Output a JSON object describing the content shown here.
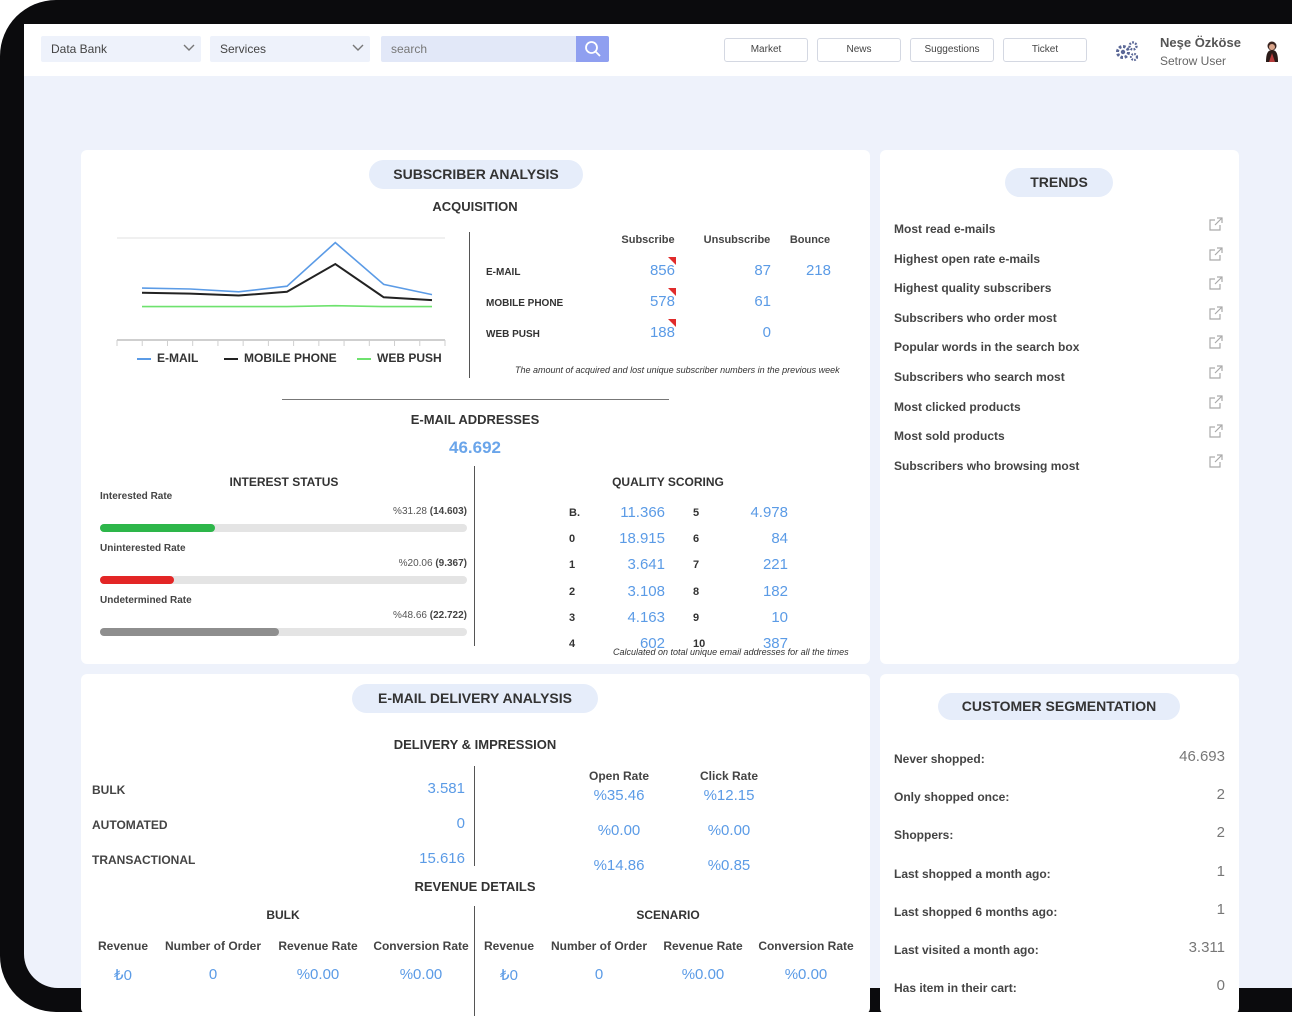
{
  "topbar": {
    "data_bank": "Data Bank",
    "services": "Services",
    "search_placeholder": "search",
    "nav": [
      "Market",
      "News",
      "Suggestions",
      "Ticket"
    ],
    "user_name": "Neşe Özköse",
    "user_role": "Setrow User"
  },
  "subscriber": {
    "title": "SUBSCRIBER ANALYSIS",
    "acquisition": "ACQUISITION",
    "legend": [
      "E-MAIL",
      "MOBILE PHONE",
      "WEB PUSH"
    ],
    "colors": [
      "#5b9be6",
      "#222222",
      "#6ee26e"
    ],
    "table": {
      "headers": [
        "Subscribe",
        "Unsubscribe",
        "Bounce"
      ],
      "rows": [
        {
          "label": "E-MAIL",
          "subscribe": "856",
          "unsubscribe": "87",
          "bounce": "218"
        },
        {
          "label": "MOBILE PHONE",
          "subscribe": "578",
          "unsubscribe": "61",
          "bounce": ""
        },
        {
          "label": "WEB PUSH",
          "subscribe": "188",
          "unsubscribe": "0",
          "bounce": ""
        }
      ],
      "note": "The amount of acquired and lost unique subscriber numbers in the previous week"
    },
    "email_addresses_title": "E-MAIL ADDRESSES",
    "email_addresses_value": "46.692",
    "interest": {
      "title": "INTEREST STATUS",
      "rows": [
        {
          "label": "Interested Rate",
          "pct": "%31.28",
          "count": "(14.603)",
          "fill": 0.3128,
          "color": "#2db64a"
        },
        {
          "label": "Uninterested Rate",
          "pct": "%20.06",
          "count": "(9.367)",
          "fill": 0.2006,
          "color": "#e32626"
        },
        {
          "label": "Undetermined Rate",
          "pct": "%48.66",
          "count": "(22.722)",
          "fill": 0.4866,
          "color": "#8e8e8e"
        }
      ]
    },
    "quality": {
      "title": "QUALITY SCORING",
      "left": [
        {
          "k": "B.",
          "v": "11.366"
        },
        {
          "k": "0",
          "v": "18.915"
        },
        {
          "k": "1",
          "v": "3.641"
        },
        {
          "k": "2",
          "v": "3.108"
        },
        {
          "k": "3",
          "v": "4.163"
        },
        {
          "k": "4",
          "v": "602"
        }
      ],
      "right": [
        {
          "k": "5",
          "v": "4.978"
        },
        {
          "k": "6",
          "v": "84"
        },
        {
          "k": "7",
          "v": "221"
        },
        {
          "k": "8",
          "v": "182"
        },
        {
          "k": "9",
          "v": "10"
        },
        {
          "k": "10",
          "v": "387"
        }
      ],
      "note": "Calculated on total unique email addresses for all the times"
    }
  },
  "chart_data": {
    "type": "line",
    "x": [
      1,
      2,
      3,
      4,
      5,
      6,
      7
    ],
    "series": [
      {
        "name": "E-MAIL",
        "values": [
          56,
          55,
          52,
          58,
          105,
          60,
          49
        ]
      },
      {
        "name": "MOBILE PHONE",
        "values": [
          51,
          50,
          48,
          52,
          82,
          46,
          43
        ]
      },
      {
        "name": "WEB PUSH",
        "values": [
          36,
          36,
          36,
          36,
          37,
          36,
          36
        ]
      }
    ],
    "ylim": [
      0,
      110
    ],
    "legend_position": "bottom"
  },
  "trends": {
    "title": "TRENDS",
    "items": [
      "Most read e-mails",
      "Highest open rate e-mails",
      "Highest quality subscribers",
      "Subscribers who order most",
      "Popular words in the search box",
      "Subscribers who search most",
      "Most clicked products",
      "Most sold products",
      "Subscribers who browsing most"
    ]
  },
  "delivery": {
    "title": "E-MAIL DELIVERY ANALYSIS",
    "subtitle": "DELIVERY & IMPRESSION",
    "rows": [
      {
        "label": "BULK",
        "value": "3.581",
        "open": "%35.46",
        "click": "%12.15"
      },
      {
        "label": "AUTOMATED",
        "value": "0",
        "open": "%0.00",
        "click": "%0.00"
      },
      {
        "label": "TRANSACTIONAL",
        "value": "15.616",
        "open": "%14.86",
        "click": "%0.85"
      }
    ],
    "open_rate": "Open Rate",
    "click_rate": "Click Rate",
    "revenue_title": "REVENUE DETAILS",
    "bulk_title": "BULK",
    "scenario_title": "SCENARIO",
    "rev_headers": [
      "Revenue",
      "Number of Order",
      "Revenue Rate",
      "Conversion Rate"
    ],
    "bulk_values": [
      "₺0",
      "0",
      "%0.00",
      "%0.00"
    ],
    "scenario_values": [
      "₺0",
      "0",
      "%0.00",
      "%0.00"
    ]
  },
  "segmentation": {
    "title": "CUSTOMER SEGMENTATION",
    "rows": [
      {
        "label": "Never shopped:",
        "value": "46.693"
      },
      {
        "label": "Only shopped once:",
        "value": "2"
      },
      {
        "label": "Shoppers:",
        "value": "2"
      },
      {
        "label": "Last shopped a month ago:",
        "value": "1"
      },
      {
        "label": "Last shopped 6 months ago:",
        "value": "1"
      },
      {
        "label": "Last visited a month ago:",
        "value": "3.311"
      },
      {
        "label": "Has item in their cart:",
        "value": "0"
      }
    ]
  }
}
